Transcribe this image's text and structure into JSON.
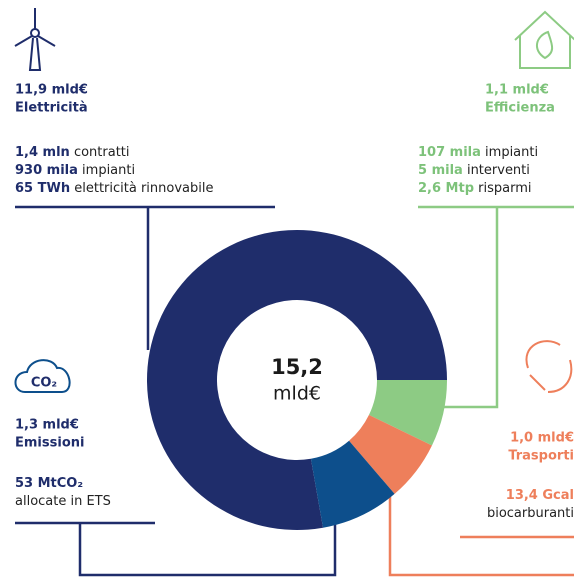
{
  "chart_data": {
    "type": "donut",
    "center_value": "15,2",
    "center_unit": "mld€",
    "categories": [
      "Elettricità",
      "Efficienza",
      "Trasporti",
      "Emissioni"
    ],
    "values": [
      11.9,
      1.1,
      1.0,
      1.3
    ],
    "value_labels": [
      "11,9 mld€",
      "1,1 mld€",
      "1,0 mld€",
      "1,3 mld€"
    ],
    "colors": [
      "#1f2d6b",
      "#8dcb84",
      "#ee7f5b",
      "#0d4f8c"
    ]
  },
  "panels": [
    {
      "lines": [
        {
          "bold": "1,4 mln",
          "text": "contratti"
        },
        {
          "bold": "930 mila",
          "text": "impianti"
        },
        {
          "bold": "65 TWh",
          "text": "elettricità rinnovabile"
        }
      ]
    },
    {
      "lines": [
        {
          "bold": "107 mila",
          "text": "impianti"
        },
        {
          "bold": "5 mila",
          "text": "interventi"
        },
        {
          "bold": "2,6 Mtp",
          "text": "risparmi"
        }
      ]
    },
    {
      "lines": [
        {
          "bold": "13,4 Gcal",
          "text": ""
        },
        {
          "bold": "",
          "text": "biocarburanti"
        }
      ]
    },
    {
      "icon_text": "CO₂",
      "lines": [
        {
          "bold": "53 MtCO₂",
          "text": ""
        },
        {
          "bold": "",
          "text": "allocate in ETS"
        }
      ]
    }
  ]
}
